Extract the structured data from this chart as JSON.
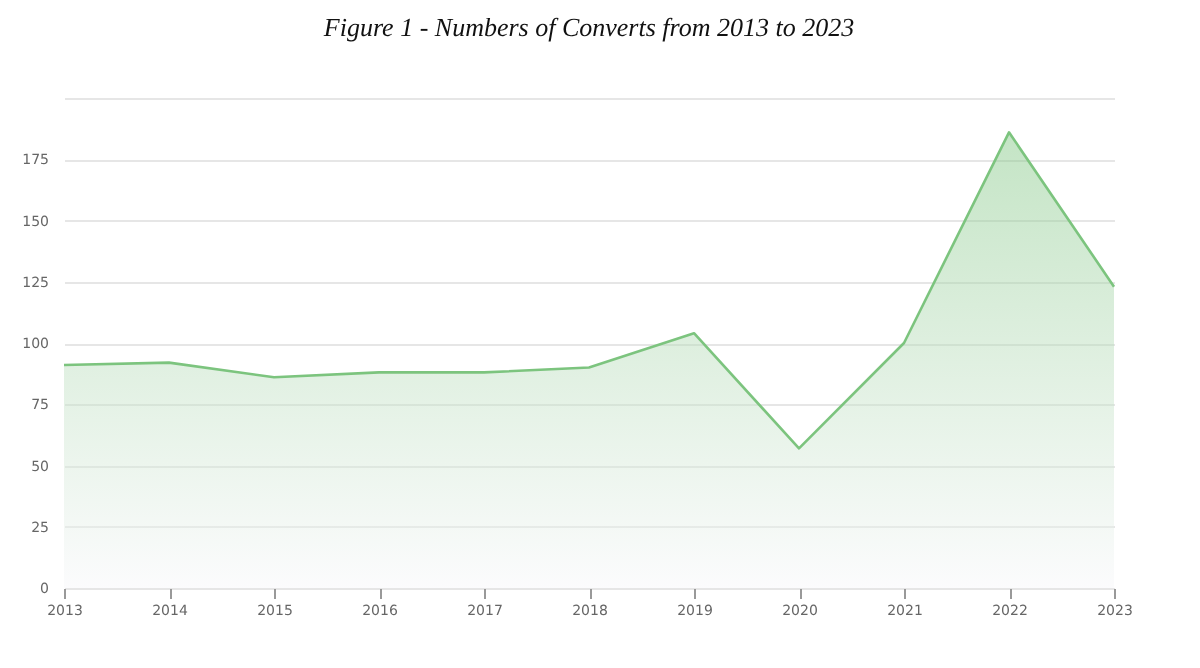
{
  "chart_data": {
    "type": "area",
    "title": "Figure 1 - Numbers of Converts from 2013 to 2023",
    "categories": [
      "2013",
      "2014",
      "2015",
      "2016",
      "2017",
      "2018",
      "2019",
      "2020",
      "2021",
      "2022",
      "2023"
    ],
    "series": [
      {
        "color": "#7cc47e",
        "values": [
          91,
          92,
          86,
          88,
          88,
          90,
          104,
          57,
          100,
          186,
          123
        ]
      }
    ],
    "ylim": [
      0,
      200
    ],
    "yticks": [
      0,
      25,
      50,
      75,
      100,
      125,
      150,
      175,
      {
        "value": 200,
        "label": null
      }
    ],
    "grid": "y"
  }
}
